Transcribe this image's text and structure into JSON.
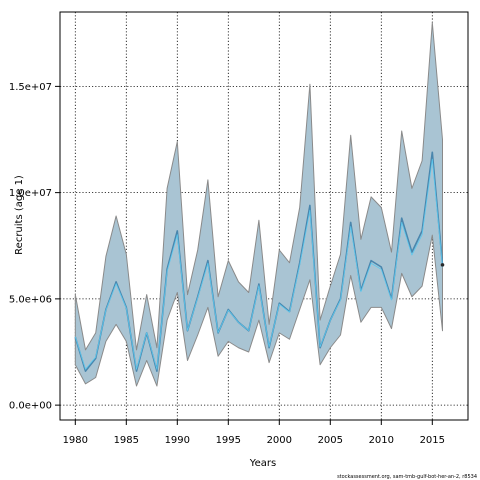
{
  "chart_data": {
    "type": "area",
    "title": "",
    "xlabel": "Years",
    "ylabel": "Recruits (age 1)",
    "credit": "stockassessment.org, sam-tmb-gulf-bot-her-an-2, r8534",
    "xlim": [
      1978.5,
      2018.5
    ],
    "ylim": [
      -700000,
      18500000
    ],
    "grid": true,
    "x_ticks": [
      1980,
      1985,
      1990,
      1995,
      2000,
      2005,
      2010,
      2015
    ],
    "y_ticks": [
      0,
      5000000,
      10000000,
      15000000
    ],
    "y_tick_labels": [
      "0.0e+00",
      "5.0e+06",
      "1.0e+07",
      "1.5e+07"
    ],
    "colors": {
      "band": "#a9c4d3",
      "band_edge": "#8a8a8a",
      "estimate": "#4a86ad",
      "estimate_alt": "#5bc8ee",
      "last_point": "#2a2a2a"
    },
    "years": [
      1980,
      1981,
      1982,
      1983,
      1984,
      1985,
      1986,
      1987,
      1988,
      1989,
      1990,
      1991,
      1992,
      1993,
      1994,
      1995,
      1996,
      1997,
      1998,
      1999,
      2000,
      2001,
      2002,
      2003,
      2004,
      2005,
      2006,
      2007,
      2008,
      2009,
      2010,
      2011,
      2012,
      2013,
      2014,
      2015,
      2016
    ],
    "estimate": [
      3200000,
      1600000,
      2200000,
      4500000,
      5800000,
      4600000,
      1600000,
      3400000,
      1600000,
      6400000,
      8200000,
      3500000,
      5100000,
      6800000,
      3400000,
      4500000,
      3900000,
      3500000,
      5700000,
      2700000,
      4800000,
      4400000,
      6700000,
      9400000,
      2700000,
      4000000,
      5000000,
      8600000,
      5400000,
      6800000,
      6500000,
      5000000,
      8800000,
      7200000,
      8200000,
      11900000,
      6600000
    ],
    "lower": [
      1900000,
      1000000,
      1300000,
      3000000,
      3800000,
      3000000,
      900000,
      2100000,
      900000,
      4000000,
      5300000,
      2100000,
      3300000,
      4600000,
      2300000,
      3000000,
      2700000,
      2500000,
      4000000,
      2000000,
      3400000,
      3100000,
      4500000,
      5900000,
      1900000,
      2700000,
      3300000,
      6100000,
      3900000,
      4600000,
      4600000,
      3600000,
      6200000,
      5100000,
      5600000,
      8000000,
      3500000
    ],
    "upper": [
      5200000,
      2600000,
      3400000,
      7000000,
      8900000,
      7100000,
      2600000,
      5200000,
      2700000,
      10200000,
      12400000,
      5200000,
      7300000,
      10600000,
      5100000,
      6800000,
      5800000,
      5300000,
      8700000,
      3800000,
      7300000,
      6700000,
      9300000,
      15100000,
      4000000,
      5600000,
      7100000,
      12700000,
      7800000,
      9800000,
      9300000,
      7200000,
      12900000,
      10200000,
      11500000,
      18000000,
      12500000
    ]
  }
}
